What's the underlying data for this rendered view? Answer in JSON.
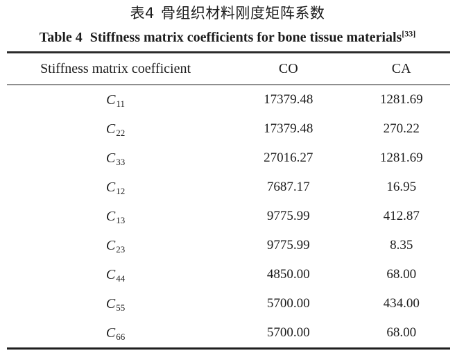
{
  "titles": {
    "zh_label": "表4",
    "zh_title": "骨组织材料刚度矩阵系数",
    "en_label": "Table 4",
    "en_title": "Stiffness matrix coefficients for bone tissue materials",
    "en_ref": "[33]"
  },
  "table": {
    "columns": [
      "Stiffness matrix coefficient",
      "CO",
      "CA"
    ],
    "rows": [
      {
        "base": "C",
        "sub": "11",
        "co": "17379.48",
        "ca": "1281.69"
      },
      {
        "base": "C",
        "sub": "22",
        "co": "17379.48",
        "ca": "270.22"
      },
      {
        "base": "C",
        "sub": "33",
        "co": "27016.27",
        "ca": "1281.69"
      },
      {
        "base": "C",
        "sub": "12",
        "co": "7687.17",
        "ca": "16.95"
      },
      {
        "base": "C",
        "sub": "13",
        "co": "9775.99",
        "ca": "412.87"
      },
      {
        "base": "C",
        "sub": "23",
        "co": "9775.99",
        "ca": "8.35"
      },
      {
        "base": "C",
        "sub": "44",
        "co": "4850.00",
        "ca": "68.00"
      },
      {
        "base": "C",
        "sub": "55",
        "co": "5700.00",
        "ca": "434.00"
      },
      {
        "base": "C",
        "sub": "66",
        "co": "5700.00",
        "ca": "68.00"
      }
    ]
  },
  "colors": {
    "text": "#1c1c1c",
    "rule_heavy": "#2b2b2b",
    "rule_light": "#8f8f8f",
    "background": "#ffffff"
  }
}
